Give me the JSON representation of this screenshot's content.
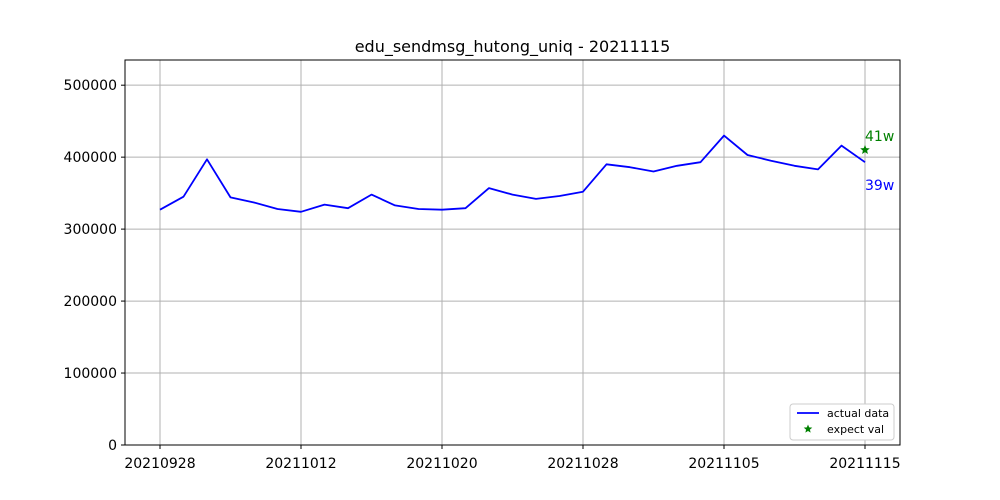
{
  "chart_data": {
    "type": "line",
    "title": "edu_sendmsg_hutong_uniq - 20211115",
    "xlabel": "",
    "ylabel": "",
    "x_ticks": [
      "20210928",
      "20211012",
      "20211020",
      "20211028",
      "20211105",
      "20211115"
    ],
    "y_ticks": [
      "0",
      "100000",
      "200000",
      "300000",
      "400000",
      "500000"
    ],
    "ylim": [
      0,
      535000
    ],
    "grid": true,
    "legend_position": "lower-right",
    "series": [
      {
        "name": "actual data",
        "color": "#0000ff",
        "values": [
          327000,
          345000,
          397000,
          344000,
          337000,
          328000,
          324000,
          334000,
          329000,
          348000,
          333000,
          328000,
          327000,
          329000,
          357000,
          348000,
          342000,
          346000,
          352000,
          390000,
          386000,
          380000,
          388000,
          393000,
          430000,
          403000,
          395000,
          388000,
          383000,
          416000,
          393000
        ]
      },
      {
        "name": "expect val",
        "color": "#008000",
        "marker": "star",
        "index": 30,
        "value": 410000
      }
    ],
    "annotations": [
      {
        "text": "41w",
        "color": "#008000",
        "index": 30,
        "value": 410000,
        "position": "above"
      },
      {
        "text": "39w",
        "color": "#0000ff",
        "index": 30,
        "value": 393000,
        "position": "below"
      }
    ]
  }
}
